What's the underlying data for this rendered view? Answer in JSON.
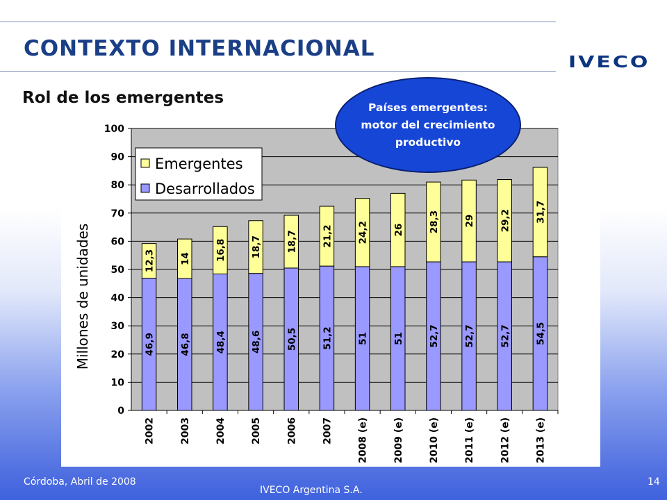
{
  "header": {
    "title": "CONTEXTO INTERNACIONAL",
    "brand": "IVECO",
    "subtitle": "Rol de los emergentes"
  },
  "callout": {
    "text": "Países emergentes:\nmotor del crecimiento\nproductivo"
  },
  "footer": {
    "left": "Córdoba, Abril de 2008",
    "center": "IVECO Argentina S.A.",
    "page": "14"
  },
  "colors": {
    "emergentes": "#ffff99",
    "desarrollados": "#9999ff",
    "plot_bg": "#c0c0c0",
    "title": "#1a3f86",
    "callout": "#1646d6"
  },
  "chart_data": {
    "type": "bar",
    "stacked": true,
    "title": "",
    "xlabel": "",
    "ylabel": "Millones de unidades",
    "ylim": [
      0,
      100
    ],
    "yticks": [
      0,
      10,
      20,
      30,
      40,
      50,
      60,
      70,
      80,
      90,
      100
    ],
    "grid": true,
    "legend_position": "top-left",
    "categories": [
      "2002",
      "2003",
      "2004",
      "2005",
      "2006",
      "2007",
      "2008 (e)",
      "2009 (e)",
      "2010 (e)",
      "2011 (e)",
      "2012 (e)",
      "2013 (e)"
    ],
    "series": [
      {
        "name": "Desarrollados",
        "values": [
          46.9,
          46.8,
          48.4,
          48.6,
          50.5,
          51.2,
          51,
          51,
          52.7,
          52.7,
          52.7,
          54.5
        ],
        "labels": [
          "46,9",
          "46,8",
          "48,4",
          "48,6",
          "50,5",
          "51,2",
          "51",
          "51",
          "52,7",
          "52,7",
          "52,7",
          "54,5"
        ]
      },
      {
        "name": "Emergentes",
        "values": [
          12.3,
          14,
          16.8,
          18.7,
          18.7,
          21.2,
          24.2,
          26,
          28.3,
          29,
          29.2,
          31.7
        ],
        "labels": [
          "12,3",
          "14",
          "16,8",
          "18,7",
          "18,7",
          "21,2",
          "24,2",
          "26",
          "28,3",
          "29",
          "29,2",
          "31,7"
        ]
      }
    ],
    "legend": [
      "Emergentes",
      "Desarrollados"
    ]
  }
}
